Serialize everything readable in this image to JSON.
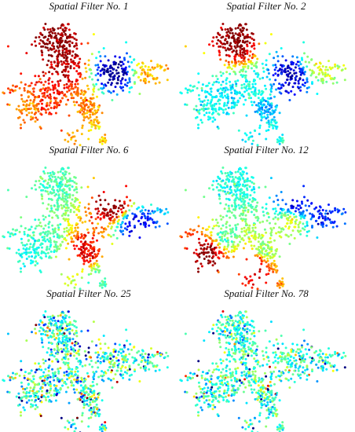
{
  "panels": [
    {
      "title": "Spatial Filter No. 1"
    },
    {
      "title": "Spatial Filter No. 2"
    },
    {
      "title": "Spatial Filter No. 6"
    },
    {
      "title": "Spatial Filter No. 12"
    },
    {
      "title": "Spatial Filter No. 25"
    },
    {
      "title": "Spatial Filter No. 78"
    }
  ]
}
